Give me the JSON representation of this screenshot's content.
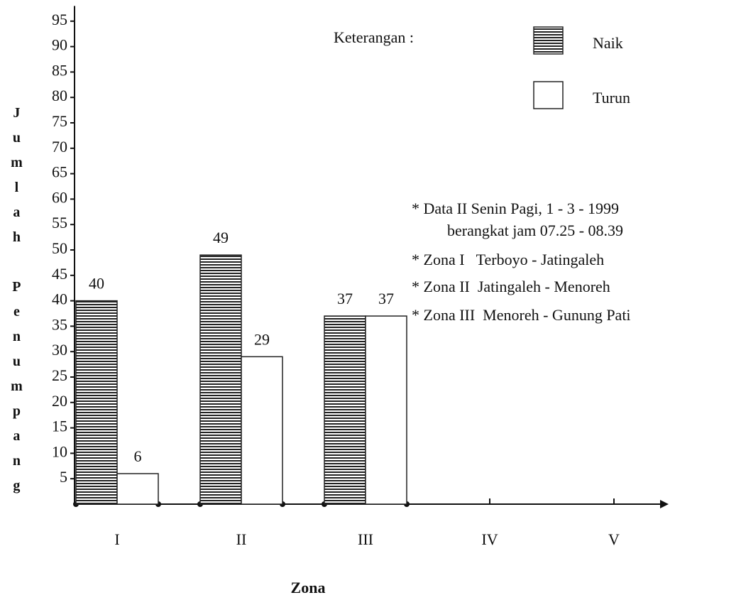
{
  "chart_data": {
    "type": "bar",
    "ylabel": "Jumlah Penumpang",
    "xlabel": "Zona",
    "legend_title": "Keterangan :",
    "legend": "top-right",
    "categories": [
      "I",
      "II",
      "III",
      "IV",
      "V"
    ],
    "series": [
      {
        "name": "Naik",
        "color": "#222222",
        "hatch": true,
        "values": [
          40,
          49,
          37,
          null,
          null
        ]
      },
      {
        "name": "Turun",
        "color": "#ffffff",
        "hatch": false,
        "values": [
          6,
          29,
          37,
          null,
          null
        ]
      }
    ],
    "ylim": [
      0,
      98
    ],
    "yticks": [
      5,
      10,
      15,
      20,
      25,
      30,
      35,
      40,
      45,
      50,
      55,
      60,
      65,
      70,
      75,
      80,
      85,
      90,
      95
    ],
    "annotations": [
      "* Data II Senin Pagi, 1 - 3 - 1999",
      "berangkat jam 07.25 - 08.39",
      "* Zona I   Terboyo - Jatingaleh",
      "* Zona II  Jatingaleh - Menoreh",
      "* Zona III  Menoreh - Gunung Pati"
    ]
  }
}
